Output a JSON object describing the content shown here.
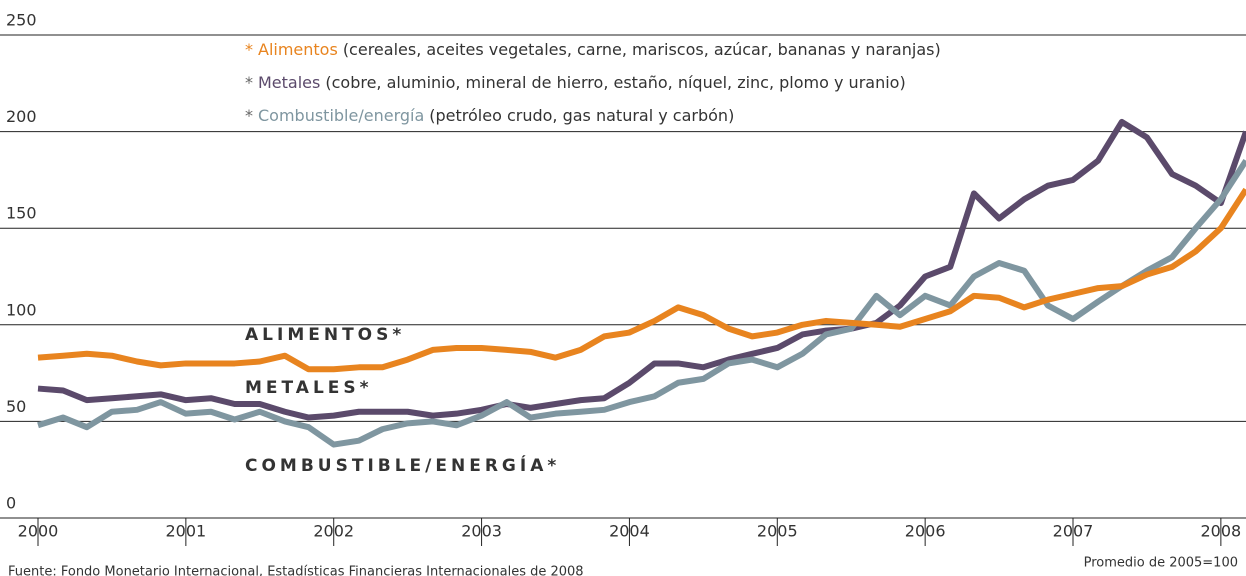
{
  "chart_data": {
    "type": "line",
    "legend_marker": "*",
    "x": [
      2000,
      2000.17,
      2000.33,
      2000.5,
      2000.67,
      2000.83,
      2001,
      2001.17,
      2001.33,
      2001.5,
      2001.67,
      2001.83,
      2002,
      2002.17,
      2002.33,
      2002.5,
      2002.67,
      2002.83,
      2003,
      2003.17,
      2003.33,
      2003.5,
      2003.67,
      2003.83,
      2004,
      2004.17,
      2004.33,
      2004.5,
      2004.67,
      2004.83,
      2005,
      2005.17,
      2005.33,
      2005.5,
      2005.67,
      2005.83,
      2006,
      2006.17,
      2006.33,
      2006.5,
      2006.67,
      2006.83,
      2007,
      2007.17,
      2007.33,
      2007.5,
      2007.67,
      2007.83,
      2008,
      2008.17
    ],
    "series": [
      {
        "name": "Alimentos",
        "description": "(cereales, aceites vegetales, carne, mariscos, azúcar, bananas y naranjas)",
        "label": "ALIMENTOS*",
        "color": "#e8841f",
        "values": [
          83,
          84,
          85,
          84,
          81,
          79,
          80,
          80,
          80,
          81,
          84,
          77,
          77,
          78,
          78,
          82,
          87,
          88,
          88,
          87,
          86,
          83,
          87,
          94,
          96,
          102,
          109,
          105,
          98,
          94,
          96,
          100,
          102,
          101,
          100,
          99,
          103,
          107,
          115,
          114,
          109,
          113,
          116,
          119,
          120,
          126,
          130,
          138,
          150,
          170
        ]
      },
      {
        "name": "Metales",
        "description": "(cobre, aluminio, mineral de hierro, estaño, níquel, zinc, plomo y uranio)",
        "label": "METALES*",
        "color": "#5b4a6b",
        "values": [
          67,
          66,
          61,
          62,
          63,
          64,
          61,
          62,
          59,
          59,
          55,
          52,
          53,
          55,
          55,
          55,
          53,
          54,
          56,
          59,
          57,
          59,
          61,
          62,
          70,
          80,
          80,
          78,
          82,
          85,
          88,
          95,
          97,
          98,
          101,
          110,
          125,
          130,
          168,
          155,
          165,
          172,
          175,
          185,
          205,
          197,
          178,
          172,
          163,
          200
        ]
      },
      {
        "name": "Combustible/energía",
        "description": "(petróleo crudo, gas natural y carbón)",
        "label": "COMBUSTIBLE/ENERGÍA*",
        "color": "#7f96a0",
        "values": [
          48,
          52,
          47,
          55,
          56,
          60,
          54,
          55,
          51,
          55,
          50,
          47,
          38,
          40,
          46,
          49,
          50,
          48,
          53,
          60,
          52,
          54,
          55,
          56,
          60,
          63,
          70,
          72,
          80,
          82,
          78,
          85,
          95,
          98,
          115,
          105,
          115,
          110,
          125,
          132,
          128,
          110,
          103,
          112,
          120,
          128,
          135,
          150,
          165,
          185
        ]
      }
    ],
    "xlim": [
      2000,
      2008.17
    ],
    "xticks": [
      2000,
      2001,
      2002,
      2003,
      2004,
      2005,
      2006,
      2007,
      2008
    ],
    "ylim": [
      0,
      250
    ],
    "yticks": [
      0,
      50,
      100,
      150,
      200,
      250
    ],
    "grid": true,
    "note": "Promedio de 2005=100",
    "source": "Fuente: Fondo Monetario Internacional, Estadísticas Financieras Internacionales de 2008"
  }
}
